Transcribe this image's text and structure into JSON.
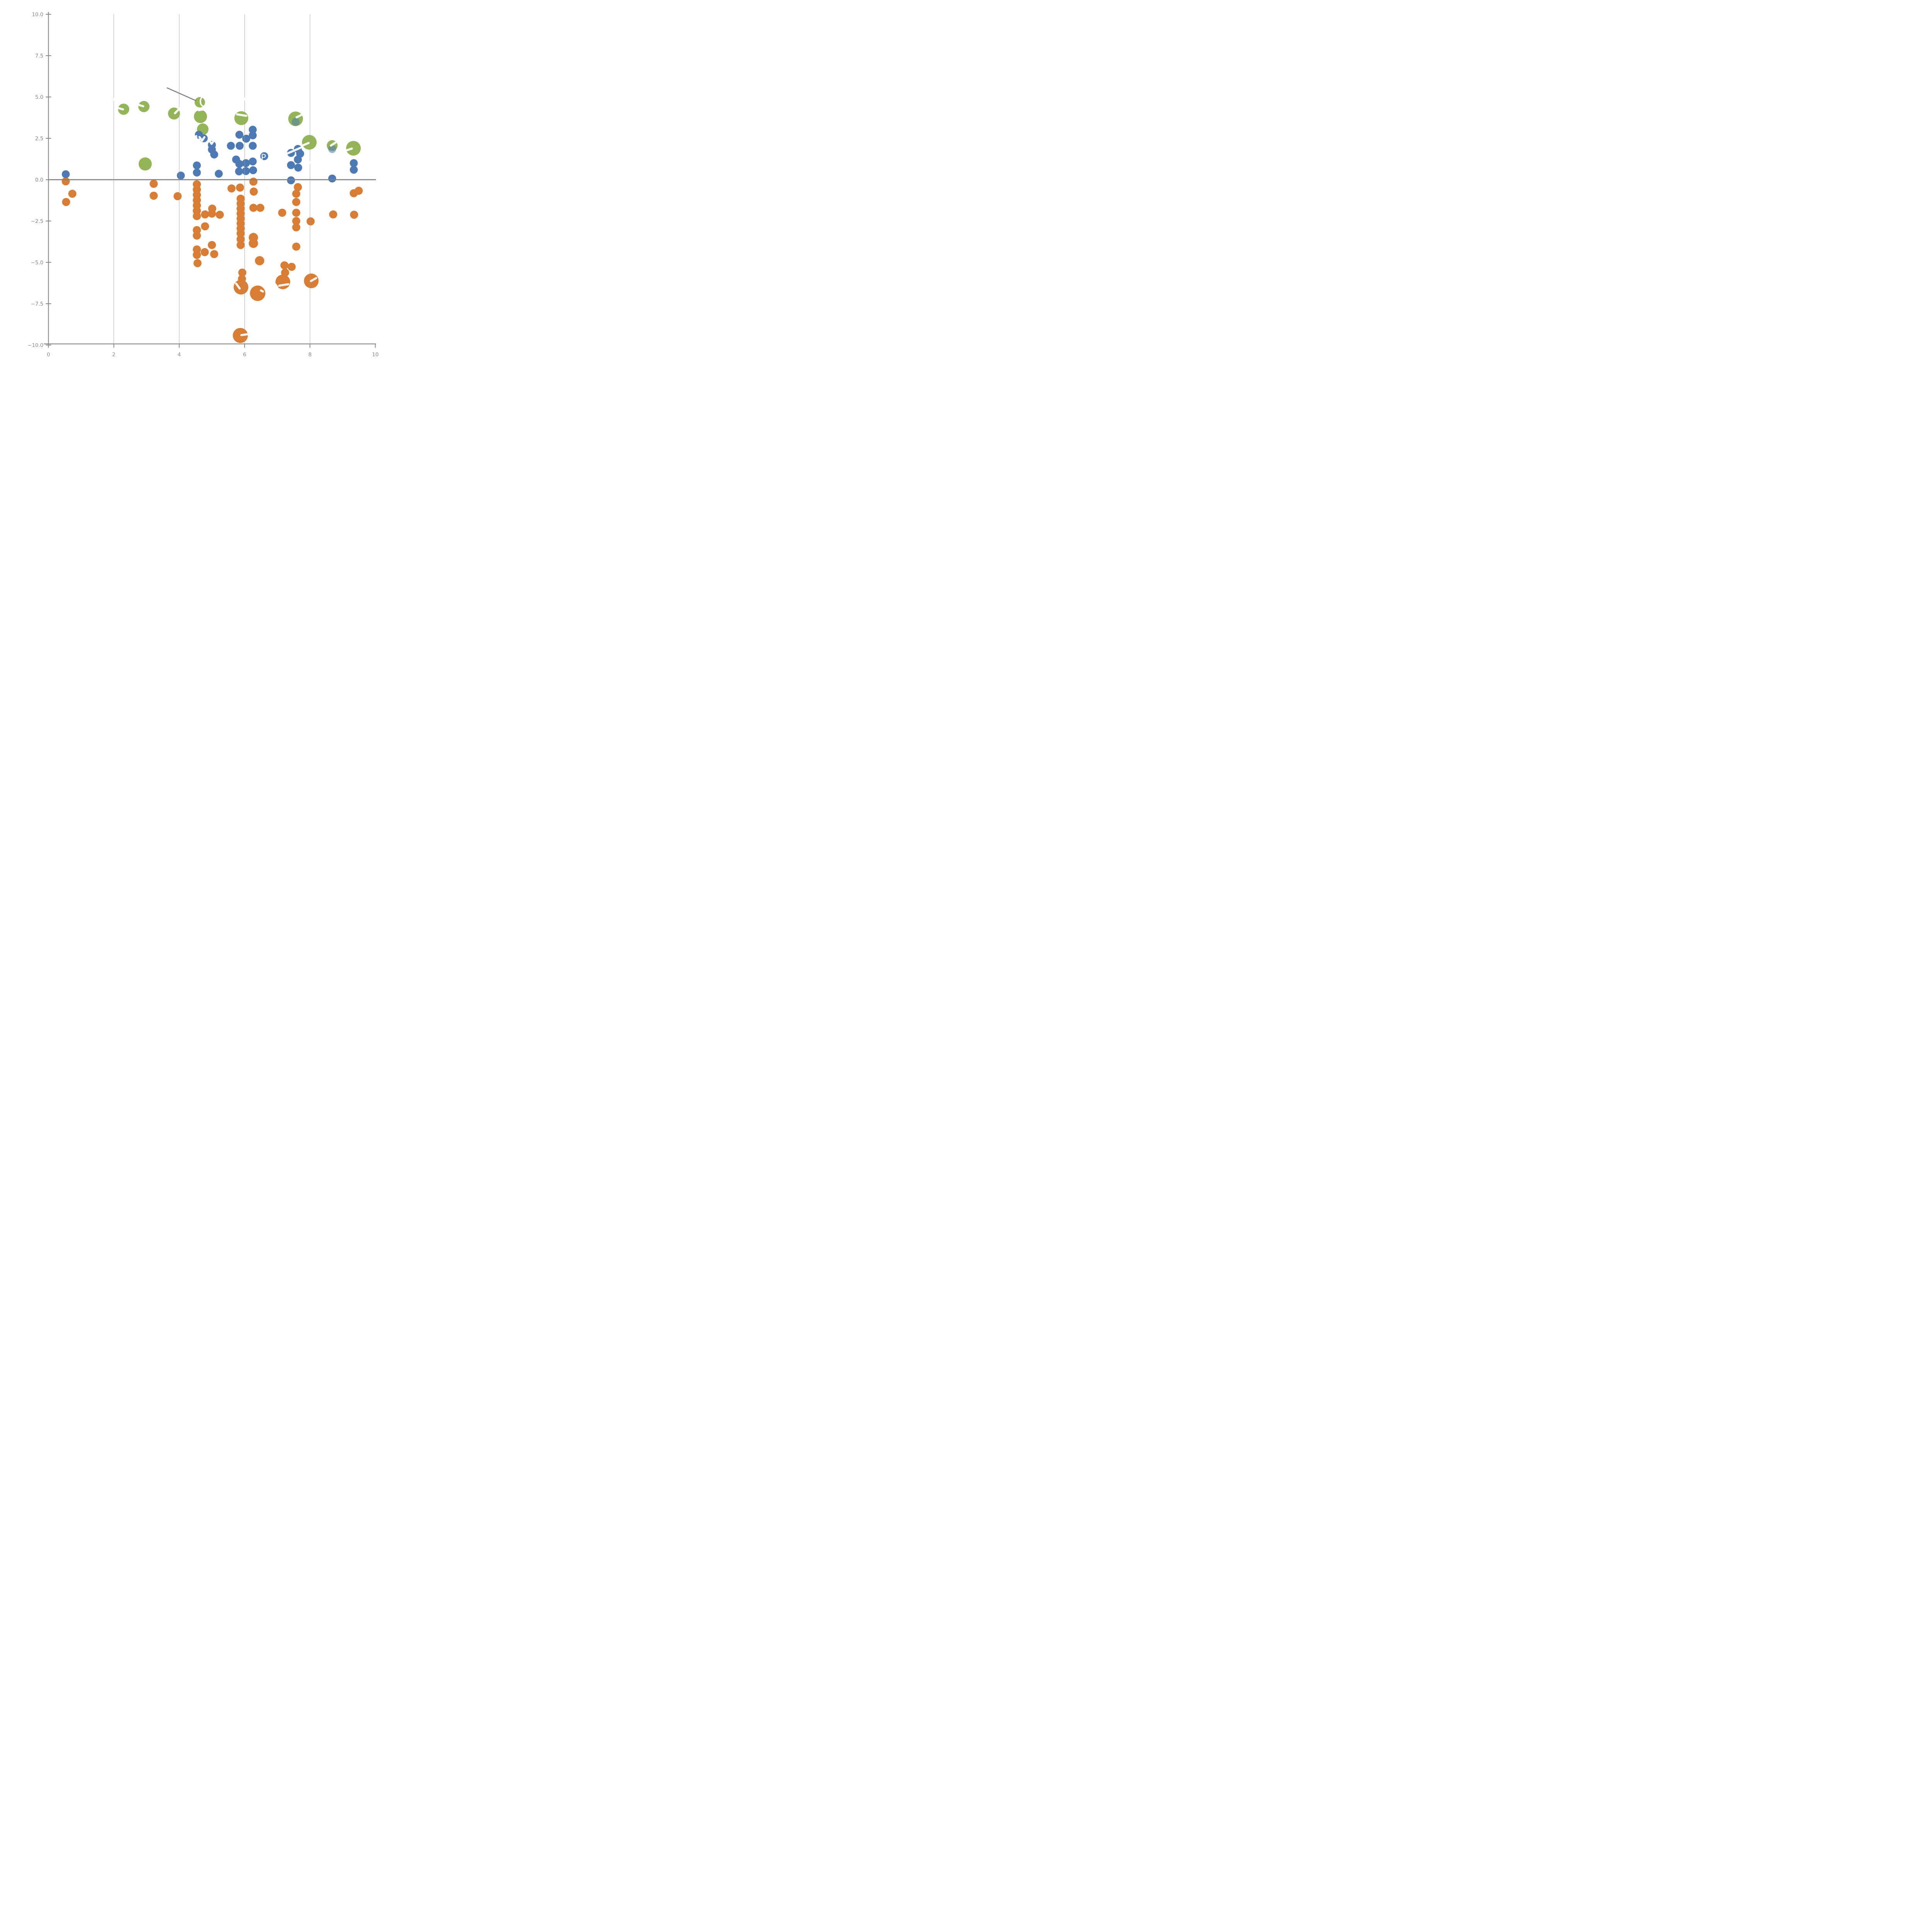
{
  "chart_data": {
    "type": "scatter",
    "title": "",
    "xlabel": "",
    "ylabel": "",
    "xlim": [
      0,
      10
    ],
    "ylim": [
      -10,
      10
    ],
    "x_ticks": [
      0,
      2,
      4,
      6,
      8,
      10
    ],
    "x_tick_labels": [
      "0",
      "2",
      "4",
      "6",
      "8",
      "10"
    ],
    "y_ticks": [
      10.0,
      7.5,
      5.0,
      2.5,
      0.0,
      -2.5,
      -5.0,
      -7.5,
      -10.0
    ],
    "y_tick_labels": [
      "10.0",
      "7.5",
      "5.0",
      "2.5",
      "0.0",
      "−2.5",
      "−5.0",
      "−7.5",
      "−10.0"
    ],
    "grid_x_positions": [
      2,
      4,
      6,
      8
    ],
    "grid_over_points": true,
    "legend": "none",
    "zero_line_y": 0,
    "colors": {
      "blue": "#4d7ab5",
      "orange": "#d87d33",
      "green": "#94b557",
      "axis_gray": "#898989",
      "zero_line_gray": "#808080",
      "grid_gray": "#9a9a9a",
      "annotation_gray": "#7f7f7f",
      "fragment_white": "#ffffff"
    },
    "series": [
      {
        "name": "green-large-markers",
        "color": "#94b557",
        "points": [
          [
            2.3,
            4.26,
            14.5
          ],
          [
            2.92,
            4.42,
            14.5
          ],
          [
            3.84,
            4.0,
            15.5
          ],
          [
            4.63,
            4.68,
            13.5
          ],
          [
            4.65,
            3.82,
            17
          ],
          [
            4.72,
            3.05,
            15
          ],
          [
            2.96,
            0.95,
            17
          ],
          [
            5.9,
            3.72,
            18
          ],
          [
            7.56,
            3.68,
            19
          ],
          [
            7.98,
            2.26,
            19
          ],
          [
            8.68,
            2.06,
            14
          ],
          [
            9.33,
            1.9,
            19
          ]
        ]
      },
      {
        "name": "orange-markers",
        "color": "#d87d33",
        "points": [
          [
            0.53,
            -0.1,
            10.5
          ],
          [
            0.73,
            -0.85,
            10.5
          ],
          [
            0.54,
            -1.35,
            10.5
          ],
          [
            3.22,
            -0.25,
            10.5
          ],
          [
            3.22,
            -0.97,
            10.5
          ],
          [
            3.95,
            -1.0,
            10.5
          ],
          [
            4.54,
            -0.28,
            10.5
          ],
          [
            4.54,
            -0.6,
            10.5
          ],
          [
            4.54,
            -0.92,
            10.5
          ],
          [
            4.54,
            -1.24,
            10.5
          ],
          [
            4.54,
            -1.56,
            10.5
          ],
          [
            4.54,
            -1.88,
            10.5
          ],
          [
            4.54,
            -2.2,
            10.5
          ],
          [
            4.54,
            -3.05,
            10.5
          ],
          [
            4.54,
            -3.38,
            10.5
          ],
          [
            4.54,
            -4.22,
            10.5
          ],
          [
            4.54,
            -4.55,
            10.5
          ],
          [
            4.56,
            -5.05,
            10.5
          ],
          [
            4.79,
            -2.1,
            10.5
          ],
          [
            5.01,
            -1.75,
            10.5
          ],
          [
            5.0,
            -2.05,
            10.5
          ],
          [
            5.24,
            -2.12,
            10.5
          ],
          [
            4.79,
            -2.82,
            10.5
          ],
          [
            5.0,
            -3.95,
            10.5
          ],
          [
            4.78,
            -4.38,
            10.5
          ],
          [
            5.07,
            -4.5,
            10.5
          ],
          [
            5.6,
            -0.53,
            10.5
          ],
          [
            5.86,
            -0.48,
            10.5
          ],
          [
            5.88,
            -1.15,
            10.5
          ],
          [
            5.88,
            -1.45,
            10.5
          ],
          [
            5.88,
            -1.75,
            10.5
          ],
          [
            5.88,
            -2.05,
            10.5
          ],
          [
            5.88,
            -2.35,
            10.5
          ],
          [
            5.88,
            -2.65,
            10.5
          ],
          [
            5.88,
            -2.95,
            10.5
          ],
          [
            5.88,
            -3.25,
            10.5
          ],
          [
            5.88,
            -3.6,
            10.5
          ],
          [
            5.88,
            -3.95,
            10.5
          ],
          [
            6.27,
            -0.12,
            10.5
          ],
          [
            6.28,
            -0.72,
            10.5
          ],
          [
            6.27,
            -1.7,
            10.5
          ],
          [
            6.48,
            -1.7,
            10.5
          ],
          [
            6.27,
            -3.5,
            12
          ],
          [
            6.27,
            -3.85,
            12
          ],
          [
            6.46,
            -4.9,
            12
          ],
          [
            5.93,
            -5.62,
            10.5
          ],
          [
            5.92,
            -6.0,
            10.5
          ],
          [
            5.89,
            -6.5,
            19
          ],
          [
            6.4,
            -6.87,
            20
          ],
          [
            5.87,
            -9.42,
            19.5
          ],
          [
            7.15,
            -2.0,
            10.5
          ],
          [
            7.63,
            -0.45,
            10.5
          ],
          [
            7.58,
            -0.85,
            10.5
          ],
          [
            7.58,
            -1.35,
            10.5
          ],
          [
            7.58,
            -2.0,
            10.5
          ],
          [
            7.58,
            -2.5,
            10.5
          ],
          [
            7.58,
            -2.88,
            10.5
          ],
          [
            7.58,
            -4.05,
            10.5
          ],
          [
            7.22,
            -5.18,
            10.5
          ],
          [
            7.44,
            -5.27,
            10.5
          ],
          [
            7.24,
            -5.62,
            10.5
          ],
          [
            7.17,
            -6.18,
            19
          ],
          [
            8.04,
            -6.12,
            19
          ],
          [
            8.02,
            -2.52,
            10.5
          ],
          [
            8.71,
            -2.1,
            10.5
          ],
          [
            9.35,
            -2.12,
            10.5
          ],
          [
            9.34,
            -0.82,
            10.5
          ],
          [
            9.49,
            -0.67,
            10.5
          ]
        ]
      },
      {
        "name": "blue-markers",
        "color": "#4d7ab5",
        "points": [
          [
            0.53,
            0.33,
            10.3
          ],
          [
            4.05,
            0.25,
            10.3
          ],
          [
            4.54,
            0.86,
            10.3
          ],
          [
            4.54,
            0.43,
            10.3
          ],
          [
            5.21,
            0.36,
            10.3
          ],
          [
            4.6,
            2.72,
            10.3
          ],
          [
            4.75,
            2.5,
            10.3
          ],
          [
            5.0,
            2.1,
            10.3
          ],
          [
            5.0,
            1.82,
            10.3
          ],
          [
            5.07,
            1.52,
            10.3
          ],
          [
            5.58,
            2.05,
            10.3
          ],
          [
            5.84,
            2.72,
            10.3
          ],
          [
            5.85,
            2.05,
            10.3
          ],
          [
            6.05,
            2.48,
            10.3
          ],
          [
            6.25,
            3.02,
            10.3
          ],
          [
            6.25,
            2.68,
            10.3
          ],
          [
            6.25,
            2.05,
            10.3
          ],
          [
            5.74,
            1.22,
            10.3
          ],
          [
            5.84,
            0.95,
            10.3
          ],
          [
            6.04,
            1.0,
            10.3
          ],
          [
            6.25,
            1.1,
            10.3
          ],
          [
            5.83,
            0.5,
            10.3
          ],
          [
            6.04,
            0.52,
            10.3
          ],
          [
            6.26,
            0.57,
            10.3
          ],
          [
            6.6,
            1.42,
            10.3
          ],
          [
            7.42,
            1.62,
            10.3
          ],
          [
            7.63,
            1.86,
            10.3
          ],
          [
            7.7,
            1.57,
            10.3
          ],
          [
            7.63,
            1.22,
            10.3
          ],
          [
            7.42,
            0.88,
            10.3
          ],
          [
            7.64,
            0.73,
            10.3
          ],
          [
            7.42,
            -0.04,
            10.3
          ],
          [
            8.68,
            0.07,
            10.3
          ],
          [
            9.34,
            1.0,
            10.3
          ],
          [
            9.34,
            0.6,
            10.3
          ]
        ]
      },
      {
        "name": "blue-overlay-markers",
        "color": "#4d7ab5",
        "opacity": 0.55,
        "points": [
          [
            7.56,
            3.5,
            10.3
          ],
          [
            8.68,
            1.85,
            10.3
          ]
        ]
      }
    ],
    "annotations": {
      "gray_line": [
        3.62,
        5.56,
        4.52,
        4.77
      ],
      "white_texts": [
        {
          "text": "OX",
          "x": 4.6,
          "y": 4.4,
          "size": 38
        },
        {
          "text": "P",
          "x": 6.5,
          "y": 1.17,
          "size": 22
        }
      ],
      "white_fragments": [
        [
          2.07,
          4.37,
          2.28,
          4.25
        ],
        [
          2.7,
          4.56,
          2.9,
          4.44
        ],
        [
          4.02,
          4.32,
          3.87,
          4.02
        ],
        [
          4.6,
          4.2,
          4.82,
          4.28
        ],
        [
          5.77,
          3.95,
          6.05,
          3.86
        ],
        [
          7.28,
          1.56,
          7.77,
          1.98
        ],
        [
          7.79,
          2.08,
          7.96,
          2.22
        ],
        [
          7.59,
          3.77,
          7.76,
          3.94
        ],
        [
          8.64,
          2.06,
          8.8,
          2.27
        ],
        [
          9.05,
          1.73,
          9.28,
          1.88
        ],
        [
          5.74,
          -6.28,
          5.85,
          -6.58
        ],
        [
          6.5,
          -6.7,
          6.56,
          -6.76
        ],
        [
          6.95,
          -6.35,
          7.0,
          -6.5
        ],
        [
          7.06,
          -6.41,
          7.34,
          -6.32
        ],
        [
          8.03,
          -6.13,
          8.19,
          -5.95
        ],
        [
          5.9,
          -9.4,
          6.08,
          -9.35
        ],
        [
          4.62,
          2.58,
          4.7,
          2.36
        ],
        [
          4.7,
          2.36,
          4.77,
          2.57
        ],
        [
          4.52,
          2.64,
          4.52,
          2.46
        ],
        [
          4.95,
          2.28,
          4.99,
          2.17
        ],
        [
          4.99,
          2.17,
          5.04,
          2.3
        ]
      ],
      "gridline_gaps": [
        [
          2.0,
          4.95,
          2.0,
          4.75
        ],
        [
          6.0,
          4.95,
          6.0,
          4.78
        ],
        [
          8.0,
          1.12,
          8.0,
          0.95
        ]
      ]
    }
  }
}
